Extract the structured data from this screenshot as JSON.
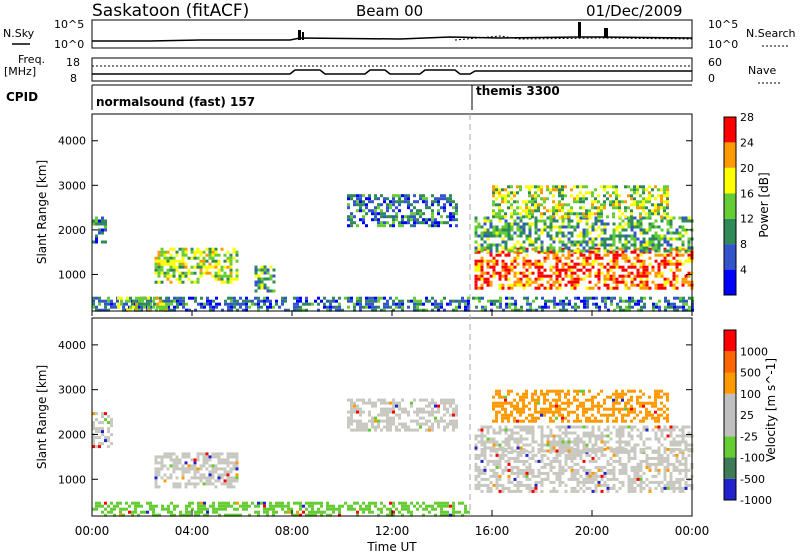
{
  "header": {
    "station": "Saskatoon (fitACF)",
    "beam": "Beam 00",
    "date": "01/Dec/2009"
  },
  "noise_panel": {
    "left_label": "N.Sky",
    "right_label": "N.Search",
    "left_ticks": [
      "10^5",
      "10^0"
    ],
    "right_ticks": [
      "10^5",
      "10^0"
    ]
  },
  "freq_panel": {
    "left_label_1": "Freq.",
    "left_label_2": "[MHz]",
    "right_label": "Nave",
    "left_ticks": [
      "18",
      "8"
    ],
    "right_ticks": [
      "60",
      "0"
    ]
  },
  "cpid_panel": {
    "label": "CPID",
    "modes": [
      {
        "name": "normalsound (fast) 157",
        "start_hour": 0
      },
      {
        "name": "themis 3300",
        "start_hour": 15.25
      }
    ]
  },
  "chart_data": [
    {
      "type": "heatmap",
      "panel": "power",
      "xlabel": "Time UT",
      "ylabel": "Slant Range [km]",
      "x_ticks": [
        "00:00",
        "04:00",
        "08:00",
        "12:00",
        "16:00",
        "20:00",
        "00:00"
      ],
      "xlim_hours": [
        0,
        24
      ],
      "y_ticks": [
        1000,
        2000,
        3000,
        4000
      ],
      "ylim": [
        180,
        4600
      ],
      "colorbar": {
        "label": "Power [dB]",
        "ticks": [
          "4",
          "8",
          "12",
          "16",
          "20",
          "24",
          "28"
        ],
        "colors": [
          "#0000ff",
          "#3355cc",
          "#2e8b57",
          "#66cc33",
          "#ffff00",
          "#ff9900",
          "#ff0000"
        ]
      },
      "echo_regions": [
        {
          "t0": 0.0,
          "t1": 15.1,
          "r0": 200,
          "r1": 500,
          "level": 2
        },
        {
          "t0": 0.0,
          "t1": 0.6,
          "r0": 1700,
          "r1": 2300,
          "level": 2
        },
        {
          "t0": 1.0,
          "t1": 3.0,
          "r0": 180,
          "r1": 500,
          "level": 4
        },
        {
          "t0": 2.5,
          "t1": 5.8,
          "r0": 800,
          "r1": 1600,
          "level": 4
        },
        {
          "t0": 6.5,
          "t1": 7.3,
          "r0": 600,
          "r1": 1200,
          "level": 3
        },
        {
          "t0": 10.2,
          "t1": 14.6,
          "r0": 2100,
          "r1": 2800,
          "level": 2
        },
        {
          "t0": 15.3,
          "t1": 24.0,
          "r0": 700,
          "r1": 1600,
          "level": 6
        },
        {
          "t0": 15.3,
          "t1": 24.0,
          "r0": 1500,
          "r1": 2300,
          "level": 3
        },
        {
          "t0": 16.0,
          "t1": 23.0,
          "r0": 2300,
          "r1": 3000,
          "level": 4
        },
        {
          "t0": 15.2,
          "t1": 24.0,
          "r0": 180,
          "r1": 500,
          "level": 2
        }
      ]
    },
    {
      "type": "heatmap",
      "panel": "velocity",
      "xlabel": "Time UT",
      "ylabel": "Slant Range [km]",
      "x_ticks": [
        "00:00",
        "04:00",
        "08:00",
        "12:00",
        "16:00",
        "20:00",
        "00:00"
      ],
      "xlim_hours": [
        0,
        24
      ],
      "y_ticks": [
        1000,
        2000,
        3000,
        4000
      ],
      "ylim": [
        180,
        4600
      ],
      "colorbar": {
        "label": "Velocity [m s^-1]",
        "ticks": [
          "1000",
          "500",
          "100",
          "25",
          "-25",
          "-100",
          "-500",
          "-1000"
        ],
        "colors": [
          "#2222cc",
          "#3d7a55",
          "#66cc33",
          "#c0c0c0",
          "#c0c0c0",
          "#ff9900",
          "#ff6600",
          "#ff0000"
        ]
      },
      "echo_regions": [
        {
          "t0": 0.0,
          "t1": 15.1,
          "r0": 200,
          "r1": 500,
          "class": "green"
        },
        {
          "t0": 0.0,
          "t1": 0.8,
          "r0": 1700,
          "r1": 2500,
          "class": "gray"
        },
        {
          "t0": 2.5,
          "t1": 5.8,
          "r0": 800,
          "r1": 1600,
          "class": "gray"
        },
        {
          "t0": 10.2,
          "t1": 14.6,
          "r0": 2100,
          "r1": 2800,
          "class": "gray"
        },
        {
          "t0": 15.3,
          "t1": 24.0,
          "r0": 700,
          "r1": 1700,
          "class": "gray"
        },
        {
          "t0": 16.0,
          "t1": 23.0,
          "r0": 2300,
          "r1": 3000,
          "class": "orange"
        },
        {
          "t0": 15.3,
          "t1": 24.0,
          "r0": 1600,
          "r1": 2200,
          "class": "gray"
        }
      ]
    }
  ]
}
